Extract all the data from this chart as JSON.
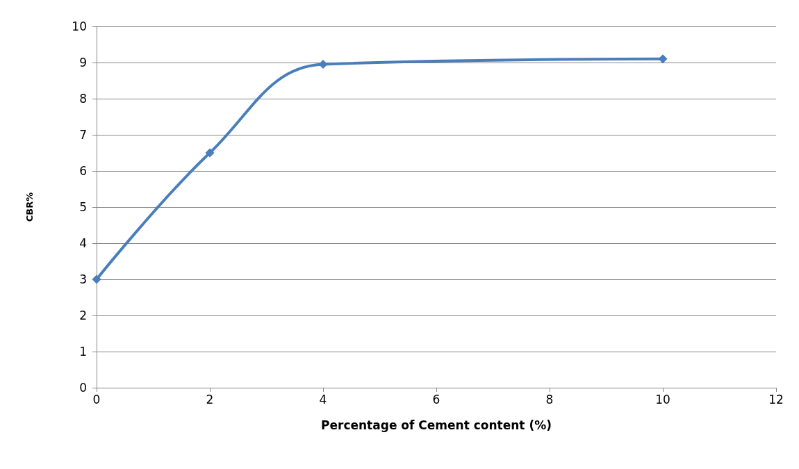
{
  "chart_data": {
    "type": "line",
    "xlabel": "Percentage of Cement content (%)",
    "ylabel": "CBR%",
    "x": [
      0,
      2,
      4,
      10
    ],
    "series": [
      {
        "color": "#4a7ebb",
        "values": [
          3,
          6.5,
          8.95,
          9.1
        ]
      }
    ],
    "xlim": [
      0,
      12
    ],
    "xticks": [
      0,
      2,
      4,
      6,
      8,
      10,
      12
    ],
    "ylim": [
      0,
      10
    ],
    "yticks": [
      0,
      1,
      2,
      3,
      4,
      5,
      6,
      7,
      8,
      9,
      10
    ],
    "grid": "y",
    "marker": "diamond",
    "line_style": "solid"
  }
}
